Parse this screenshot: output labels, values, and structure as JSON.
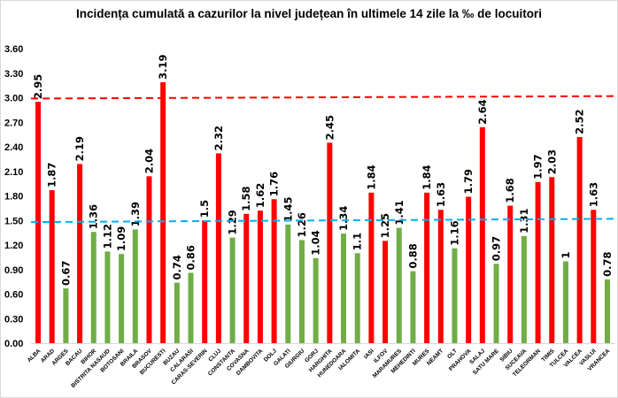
{
  "chart_data": {
    "type": "bar",
    "title": "Incidența cumulată a cazurilor la nivel județean în ultimele 14 zile la ‰ de locuitori",
    "xlabel": "",
    "ylabel": "",
    "ylim": [
      0,
      3.6
    ],
    "yticks": [
      "0.00",
      "0.30",
      "0.60",
      "0.90",
      "1.20",
      "1.50",
      "1.80",
      "2.10",
      "2.40",
      "2.70",
      "3.00",
      "3.30",
      "3.60"
    ],
    "grid": false,
    "categories": [
      "ALBA",
      "ARAD",
      "ARGES",
      "BACAU",
      "BIHOR",
      "BISTRITA NASAUD",
      "BOTOSANI",
      "BRAILA",
      "BRASOV",
      "BUCURESTI",
      "BUZAU",
      "CALARASI",
      "CARAS-SEVERIN",
      "CLUJ",
      "CONSTANTA",
      "COVASNA",
      "DAMBOVITA",
      "DOLJ",
      "GALATI",
      "GIURGIU",
      "GORJ",
      "HARGHITA",
      "HUNEDOARA",
      "IALOMITA",
      "IASI",
      "ILFOV",
      "MARAMURES",
      "MEHEDINTI",
      "MURES",
      "NEAMT",
      "OLT",
      "PRAHOVA",
      "SALAJ",
      "SATU MARE",
      "SIBIU",
      "SUCEAVA",
      "TELEORMAN",
      "TIMIS",
      "TULCEA",
      "VALCEA",
      "VASLUI",
      "VRANCEA"
    ],
    "values": [
      2.95,
      1.87,
      0.67,
      2.19,
      1.36,
      1.12,
      1.09,
      1.39,
      2.04,
      3.19,
      0.74,
      0.86,
      1.5,
      2.32,
      1.29,
      1.58,
      1.62,
      1.76,
      1.45,
      1.26,
      1.04,
      2.45,
      1.34,
      1.1,
      1.84,
      1.25,
      1.41,
      0.88,
      1.84,
      1.63,
      1.16,
      1.79,
      2.64,
      0.97,
      1.68,
      1.31,
      1.97,
      2.03,
      1,
      2.52,
      1.63,
      0.78
    ],
    "value_labels": [
      "2.95",
      "1.87",
      "0.67",
      "2.19",
      "1.36",
      "1.12",
      "1.09",
      "1.39",
      "2.04",
      "3.19",
      "0.74",
      "0.86",
      "1.5",
      "2.32",
      "1.29",
      "1.58",
      "1.62",
      "1.76",
      "1.45",
      "1.26",
      "1.04",
      "2.45",
      "1.34",
      "1.1",
      "1.84",
      "1.25",
      "1.41",
      "0.88",
      "1.84",
      "1.63",
      "1.16",
      "1.79",
      "2.64",
      "0.97",
      "1.68",
      "1.31",
      "1.97",
      "2.03",
      "1",
      "2.52",
      "1.63",
      "0.78"
    ],
    "bar_colors": [
      "r",
      "r",
      "g",
      "r",
      "g",
      "g",
      "g",
      "g",
      "r",
      "r",
      "g",
      "g",
      "r",
      "r",
      "g",
      "r",
      "r",
      "r",
      "g",
      "g",
      "g",
      "r",
      "g",
      "g",
      "r",
      "r",
      "g",
      "g",
      "r",
      "r",
      "g",
      "r",
      "r",
      "g",
      "r",
      "g",
      "r",
      "r",
      "g",
      "r",
      "r",
      "g"
    ],
    "colors": {
      "r": "#ff0000",
      "g": "#70ad47"
    },
    "reference_lines": [
      {
        "from": 2.99,
        "to": 3.02,
        "color": "#ff0000",
        "style": "dashed"
      },
      {
        "from": 1.48,
        "to": 1.52,
        "color": "#00b0f0",
        "style": "dashed"
      }
    ]
  }
}
